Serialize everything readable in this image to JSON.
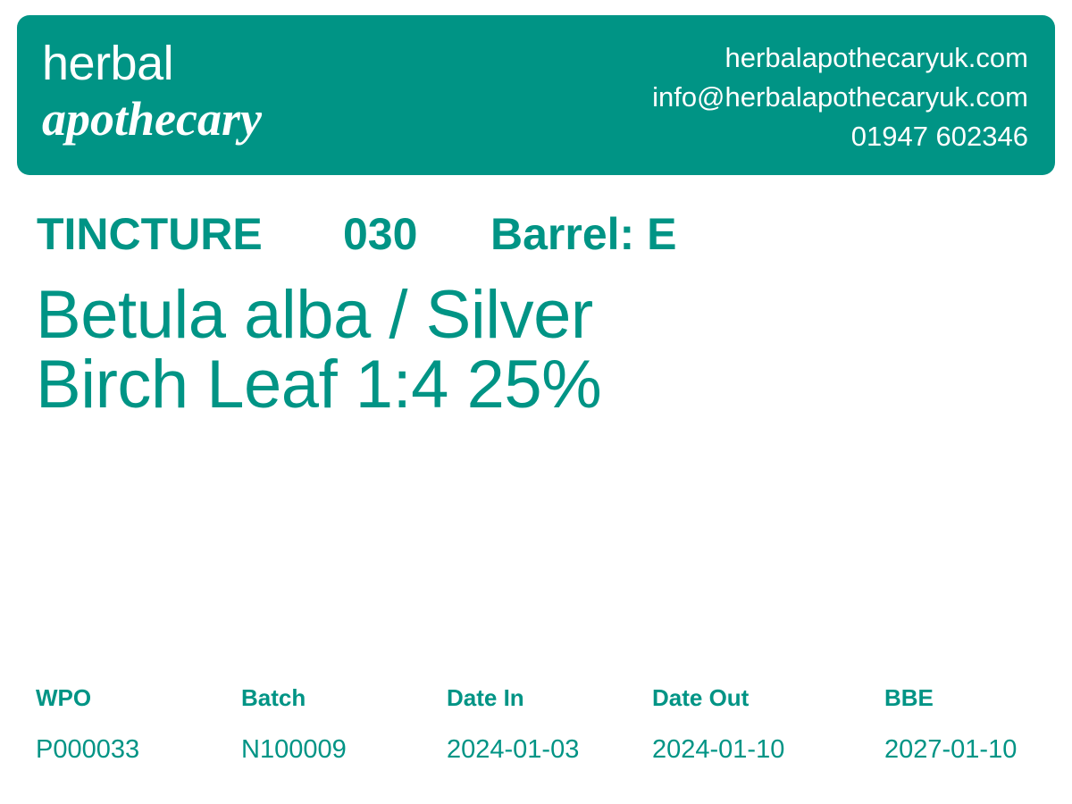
{
  "brand": {
    "line1": "herbal",
    "line2": "apothecary"
  },
  "contact": {
    "website": "herbalapothecaryuk.com",
    "email": "info@herbalapothecaryuk.com",
    "phone": "01947 602346"
  },
  "product": {
    "type": "TINCTURE",
    "code": "030",
    "barrel": "Barrel: E",
    "name_line1": "Betula alba / Silver",
    "name_line2": "Birch Leaf 1:4 25%"
  },
  "details": {
    "labels": [
      "WPO",
      "Batch",
      "Date In",
      "Date Out",
      "BBE"
    ],
    "values": [
      "P000033",
      "N100009",
      "2024-01-03",
      "2024-01-10",
      "2027-01-10"
    ]
  },
  "colors": {
    "brand": "#009485",
    "background": "#ffffff",
    "header_text": "#ffffff"
  }
}
